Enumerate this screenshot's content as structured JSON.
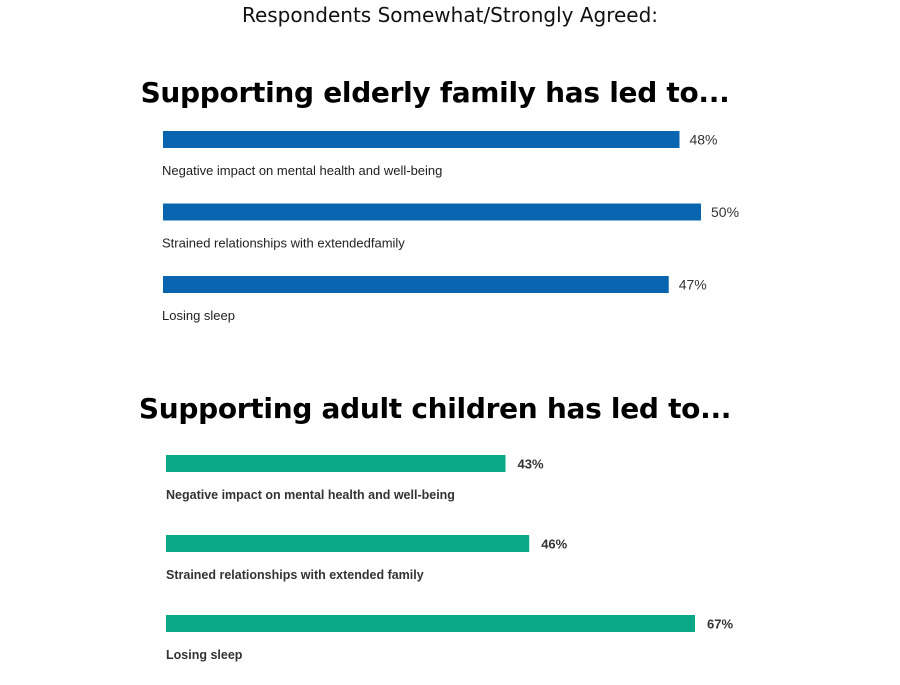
{
  "title": "Respondents Somewhat/Strongly Agreed:",
  "colors": {
    "elderly": "#0a65b0",
    "children": "#0aa887"
  },
  "chart_data": [
    {
      "type": "bar",
      "orientation": "horizontal",
      "title": "Supporting elderly family has led to...",
      "categories": [
        "Negative impact on mental health and well-being",
        "Strained relationships with extendedfamily",
        "Losing sleep"
      ],
      "values": [
        48,
        50,
        47
      ],
      "value_labels": [
        "48%",
        "50%",
        "47%"
      ],
      "unit": "%",
      "xlim": [
        0,
        50
      ],
      "grid": false
    },
    {
      "type": "bar",
      "orientation": "horizontal",
      "title": "Supporting adult children has led to...",
      "categories": [
        "Negative impact on mental health and well-being",
        "Strained relationships with extended family",
        "Losing sleep"
      ],
      "values": [
        43,
        46,
        67
      ],
      "value_labels": [
        "43%",
        "46%",
        "67%"
      ],
      "unit": "%",
      "xlim": [
        0,
        67
      ],
      "grid": false
    }
  ]
}
